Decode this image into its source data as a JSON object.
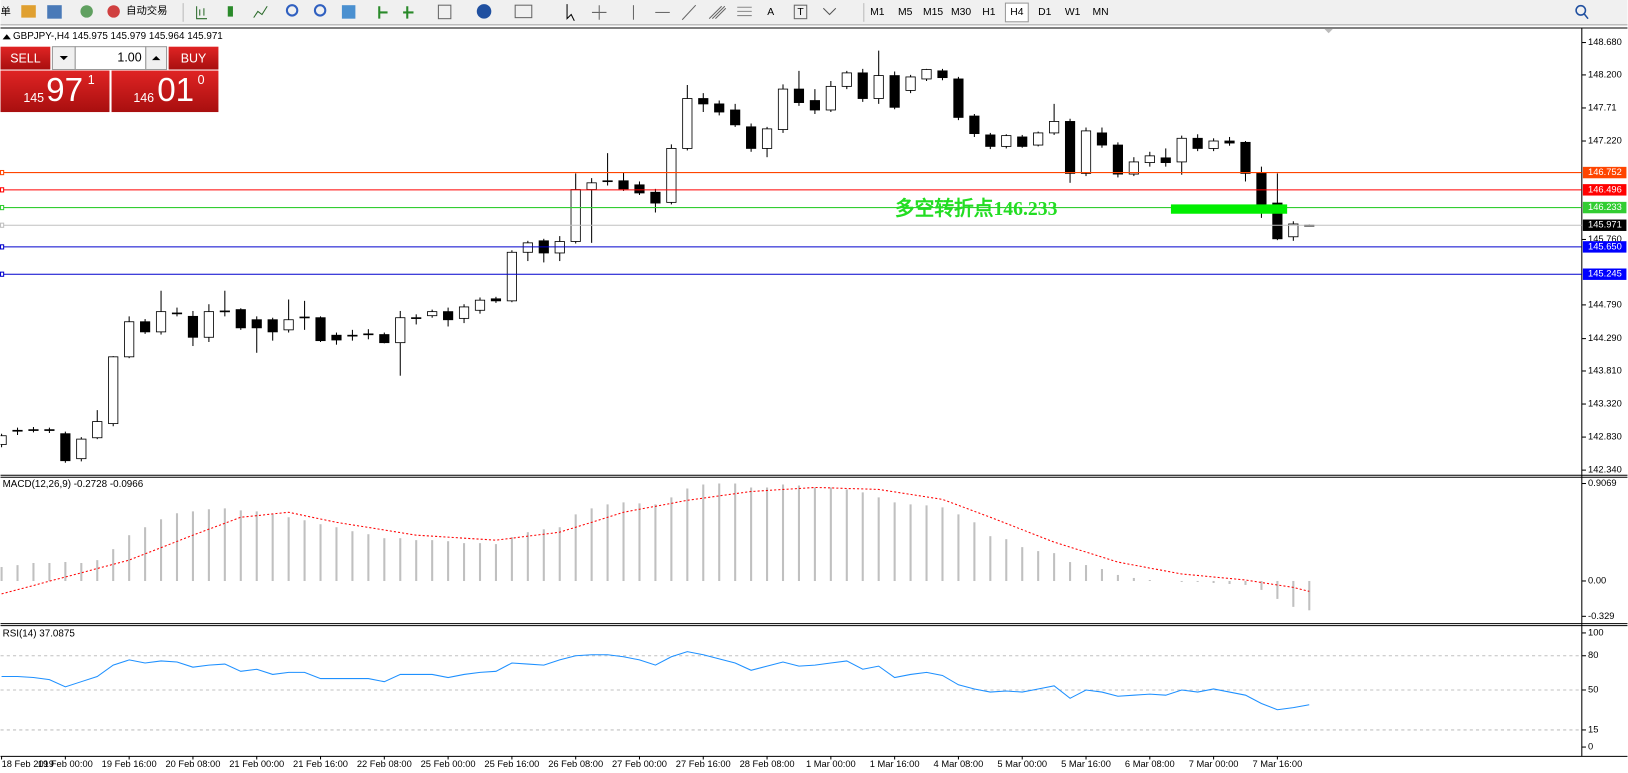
{
  "toolbar": {
    "menu_fragment": "单",
    "auto_trade": "自动交易",
    "text_tools": [
      "A",
      "T"
    ],
    "timeframes": [
      "M1",
      "M5",
      "M15",
      "M30",
      "H1",
      "H4",
      "D1",
      "W1",
      "MN"
    ],
    "active": "H4"
  },
  "trade_panel": {
    "sell": "SELL",
    "lots": "1.00",
    "buy": "BUY",
    "sell_price": {
      "head": "145",
      "big": "97",
      "tail": "1"
    },
    "buy_price": {
      "head": "146",
      "big": "01",
      "tail": "0"
    }
  },
  "chart_data": [
    {
      "type": "candlestick",
      "title": "GBPJPY-,H4  145.975 145.979 145.964 145.971",
      "categories": [
        "18 Feb 2019",
        null,
        null,
        null,
        "19 Feb 00:00",
        null,
        null,
        null,
        "19 Feb 16:00",
        null,
        null,
        null,
        "20 Feb 08:00",
        null,
        null,
        null,
        "21 Feb 00:00",
        null,
        null,
        null,
        "21 Feb 16:00",
        null,
        null,
        null,
        "22 Feb 08:00",
        null,
        null,
        null,
        "25 Feb 00:00",
        null,
        null,
        null,
        "25 Feb 16:00",
        null,
        null,
        null,
        "26 Feb 08:00",
        null,
        null,
        null,
        "27 Feb 00:00",
        null,
        null,
        null,
        "27 Feb 16:00",
        null,
        null,
        null,
        "28 Feb 08:00",
        null,
        null,
        null,
        "1 Mar 00:00",
        null,
        null,
        null,
        "1 Mar 16:00",
        null,
        null,
        null,
        "4 Mar 08:00",
        null,
        null,
        null,
        "5 Mar 00:00",
        null,
        null,
        null,
        "5 Mar 16:00",
        null,
        null,
        null,
        "6 Mar 08:00",
        null,
        null,
        null,
        "7 Mar 00:00",
        null,
        null,
        null,
        "7 Mar 16:00",
        null,
        null
      ],
      "open": [
        142.72,
        142.92,
        142.94,
        142.94,
        142.88,
        142.51,
        142.82,
        143.03,
        144.02,
        144.54,
        144.39,
        144.67,
        144.62,
        144.31,
        144.69,
        144.72,
        144.57,
        144.57,
        144.42,
        144.61,
        144.6,
        144.34,
        144.34,
        144.35,
        144.35,
        144.23,
        144.6,
        144.63,
        144.69,
        144.59,
        144.71,
        144.88,
        144.85,
        145.57,
        145.74,
        145.56,
        145.73,
        146.5,
        146.62,
        146.63,
        146.57,
        146.46,
        146.31,
        147.11,
        147.85,
        147.77,
        147.68,
        147.43,
        147.11,
        147.39,
        147.99,
        147.82,
        147.68,
        148.03,
        148.23,
        147.85,
        148.19,
        147.97,
        148.14,
        148.26,
        148.14,
        147.59,
        147.31,
        147.14,
        147.28,
        147.16,
        147.34,
        147.51,
        146.74,
        147.34,
        147.16,
        146.73,
        146.9,
        146.97,
        146.91,
        147.26,
        147.11,
        147.22,
        147.2,
        146.74,
        146.3,
        145.8,
        145.97
      ],
      "high": [
        142.88,
        142.97,
        142.98,
        142.97,
        142.91,
        142.83,
        143.23,
        144.03,
        144.62,
        144.58,
        145.0,
        144.75,
        144.7,
        144.8,
        145.0,
        144.74,
        144.62,
        144.6,
        144.87,
        144.85,
        144.62,
        144.38,
        144.42,
        144.43,
        144.38,
        144.7,
        144.65,
        144.72,
        144.75,
        144.8,
        144.9,
        144.91,
        145.6,
        145.74,
        145.77,
        145.81,
        146.74,
        146.67,
        147.04,
        146.75,
        146.62,
        146.51,
        147.17,
        148.05,
        147.93,
        147.82,
        147.77,
        147.48,
        147.43,
        148.06,
        148.26,
        147.99,
        148.11,
        148.26,
        148.29,
        148.56,
        148.25,
        148.2,
        148.29,
        148.29,
        148.17,
        147.62,
        147.34,
        147.32,
        147.31,
        147.36,
        147.77,
        147.55,
        147.42,
        147.42,
        147.2,
        146.98,
        147.06,
        147.11,
        147.3,
        147.32,
        147.26,
        147.28,
        147.22,
        146.84,
        146.74,
        146.03,
        145.98
      ],
      "low": [
        142.68,
        142.86,
        142.9,
        142.89,
        142.45,
        142.47,
        142.8,
        142.99,
        144.0,
        144.36,
        144.35,
        144.62,
        144.18,
        144.24,
        144.62,
        144.42,
        144.08,
        144.26,
        144.38,
        144.42,
        144.24,
        144.2,
        144.26,
        144.28,
        144.22,
        143.74,
        144.5,
        144.6,
        144.47,
        144.52,
        144.66,
        144.82,
        144.83,
        145.44,
        145.42,
        145.44,
        145.7,
        145.71,
        146.56,
        146.48,
        146.42,
        146.16,
        146.28,
        147.08,
        147.65,
        147.6,
        147.43,
        147.06,
        146.98,
        147.34,
        147.74,
        147.62,
        147.65,
        147.99,
        147.8,
        147.77,
        147.69,
        147.93,
        148.11,
        148.12,
        147.53,
        147.28,
        147.1,
        147.11,
        147.12,
        147.14,
        147.31,
        146.6,
        146.7,
        147.12,
        146.68,
        146.7,
        146.84,
        146.84,
        146.72,
        147.07,
        147.07,
        147.15,
        146.62,
        146.08,
        145.75,
        145.74,
        145.96
      ],
      "close": [
        142.85,
        142.93,
        142.94,
        142.93,
        142.48,
        142.8,
        143.06,
        144.02,
        144.54,
        144.39,
        144.69,
        144.66,
        144.31,
        144.69,
        144.7,
        144.45,
        144.45,
        144.39,
        144.57,
        144.6,
        144.26,
        144.27,
        144.34,
        144.36,
        144.23,
        144.6,
        144.59,
        144.69,
        144.57,
        144.76,
        144.86,
        144.85,
        145.57,
        145.71,
        145.56,
        145.73,
        146.5,
        146.6,
        146.63,
        146.51,
        146.45,
        146.3,
        147.11,
        147.85,
        147.77,
        147.65,
        147.46,
        147.11,
        147.4,
        147.99,
        147.79,
        147.68,
        148.03,
        148.23,
        147.85,
        148.19,
        147.72,
        148.17,
        148.28,
        148.16,
        147.57,
        147.33,
        147.14,
        147.3,
        147.14,
        147.34,
        147.51,
        146.74,
        147.37,
        147.16,
        146.73,
        146.91,
        147.0,
        146.9,
        147.26,
        147.11,
        147.22,
        147.19,
        146.74,
        146.26,
        145.77,
        145.99,
        145.971
      ],
      "colors": {
        "up": "#ffffff",
        "down": "#000000",
        "outline": "#000000"
      },
      "ylim": [
        142.28,
        148.88
      ],
      "yticks": [
        {
          "value": 148.68,
          "label": "148.680"
        },
        {
          "value": 148.2,
          "label": "148.200"
        },
        147.71,
        {
          "value": 147.22,
          "label": "147.220"
        },
        {
          "value": 145.76,
          "label": "145.760"
        },
        {
          "value": 144.79,
          "label": "144.790"
        },
        {
          "value": 144.29,
          "label": "144.290"
        },
        {
          "value": 143.81,
          "label": "143.810"
        },
        {
          "value": 143.32,
          "label": "143.320"
        },
        {
          "value": 142.83,
          "label": "142.830"
        },
        {
          "value": 142.34,
          "label": "142.340"
        }
      ],
      "hlines": [
        {
          "value": 146.752,
          "color": "#ff4500",
          "label_color": "#ff4500"
        },
        {
          "value": 146.496,
          "color": "#ff0000",
          "label_color": "#ff0000"
        },
        {
          "value": 146.233,
          "color": "#32cd32",
          "label_color": "#32cd32"
        },
        {
          "value": 145.971,
          "color": "#c0c0c0",
          "label_color": "#000000"
        },
        {
          "value": 145.65,
          "label": "145.650",
          "color": "#0000cd",
          "label_color": "#0000ff"
        },
        {
          "value": 145.245,
          "color": "#0000cd",
          "label_color": "#0000ff"
        }
      ],
      "annotation": {
        "text": "多空转折点146.233",
        "color": "#22dd22"
      }
    },
    {
      "type": "macd",
      "title": "MACD(12,26,9) -0.2728 -0.0966",
      "histogram": [
        0.13,
        0.148,
        0.167,
        0.167,
        0.176,
        0.167,
        0.194,
        0.296,
        0.426,
        0.5,
        0.574,
        0.63,
        0.648,
        0.667,
        0.676,
        0.657,
        0.648,
        0.62,
        0.593,
        0.565,
        0.528,
        0.5,
        0.463,
        0.435,
        0.398,
        0.398,
        0.38,
        0.38,
        0.37,
        0.352,
        0.352,
        0.343,
        0.407,
        0.454,
        0.481,
        0.5,
        0.62,
        0.676,
        0.713,
        0.731,
        0.722,
        0.713,
        0.778,
        0.861,
        0.898,
        0.907,
        0.907,
        0.87,
        0.87,
        0.898,
        0.889,
        0.87,
        0.87,
        0.852,
        0.824,
        0.778,
        0.731,
        0.713,
        0.704,
        0.685,
        0.62,
        0.546,
        0.417,
        0.389,
        0.315,
        0.278,
        0.259,
        0.176,
        0.148,
        0.111,
        0.056,
        0.028,
        0.009,
        0,
        -0.009,
        -0.009,
        -0.019,
        -0.028,
        -0.037,
        -0.083,
        -0.167,
        -0.241,
        -0.273
      ],
      "signal": [
        -0.12,
        -0.081,
        -0.042,
        -0.002,
        0.037,
        0.076,
        0.116,
        0.155,
        0.194,
        0.252,
        0.31,
        0.368,
        0.426,
        0.482,
        0.537,
        0.593,
        0.608,
        0.624,
        0.639,
        0.608,
        0.577,
        0.546,
        0.522,
        0.498,
        0.474,
        0.45,
        0.426,
        0.417,
        0.408,
        0.398,
        0.389,
        0.38,
        0.398,
        0.417,
        0.435,
        0.454,
        0.5,
        0.546,
        0.593,
        0.639,
        0.667,
        0.694,
        0.722,
        0.75,
        0.771,
        0.792,
        0.812,
        0.833,
        0.842,
        0.852,
        0.861,
        0.87,
        0.866,
        0.861,
        0.857,
        0.852,
        0.829,
        0.806,
        0.782,
        0.759,
        0.704,
        0.648,
        0.593,
        0.535,
        0.477,
        0.419,
        0.361,
        0.315,
        0.269,
        0.222,
        0.176,
        0.148,
        0.12,
        0.093,
        0.065,
        0.051,
        0.037,
        0.023,
        0.009,
        -0.014,
        -0.037,
        -0.06,
        -0.097
      ],
      "histogram_color": "#c0c0c0",
      "signal_color": "#ff0000",
      "ylim": [
        -0.329,
        0.9069
      ],
      "yticks": [
        0.9069,
        {
          "value": 0,
          "label": "0.00"
        },
        -0.329
      ]
    },
    {
      "type": "rsi",
      "title": "RSI(14) 37.0875",
      "values": [
        61.8,
        61.8,
        60.9,
        59.1,
        52.7,
        57.3,
        61.8,
        71.8,
        76.4,
        73.6,
        75.5,
        74.5,
        70,
        71.8,
        72.7,
        66.4,
        68.2,
        63.6,
        65.5,
        65.5,
        60,
        60,
        60,
        60,
        57.3,
        63.6,
        63.6,
        63.6,
        60.9,
        63.6,
        65.5,
        66.4,
        73.6,
        72.7,
        71.8,
        76.4,
        80,
        80.9,
        80.9,
        79.1,
        76.4,
        71.8,
        79.1,
        83.6,
        80.9,
        77.3,
        73.6,
        67.3,
        70.9,
        74.5,
        70.9,
        71.8,
        73.6,
        75.5,
        68.2,
        70.9,
        60.9,
        63.6,
        65.5,
        62.7,
        54.5,
        50.9,
        48.2,
        49.1,
        48.2,
        50.9,
        53.6,
        42.7,
        50,
        48.2,
        44.5,
        45.5,
        46.4,
        45.5,
        50,
        48.2,
        50.9,
        48.2,
        45.5,
        38.2,
        32.7,
        34.5,
        37.1
      ],
      "color": "#1e90ff",
      "ylim": [
        0,
        100
      ],
      "yticks": [
        100,
        80,
        50,
        15,
        0
      ],
      "levels": [
        80,
        50,
        15
      ]
    }
  ]
}
